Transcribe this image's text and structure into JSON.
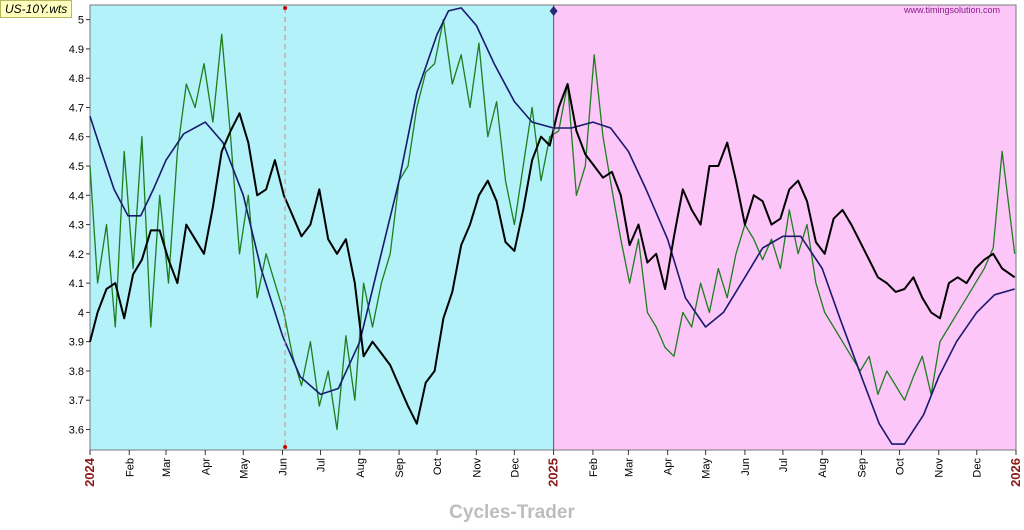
{
  "file_label": "US-10Y.wts",
  "brand": "Cycles-Trader",
  "colors": {
    "past_background": "#b2f2f8",
    "future_background": "#fcc6f8",
    "price": "#000000",
    "forecast_green": "#1e7d1e",
    "cycle_blue": "#1a1a6e",
    "year_label": "#8b1a1a",
    "cursor_line": "#e08080"
  },
  "chart_data": {
    "type": "line",
    "watermark": "www.timingsolution.com",
    "y_ticks": [
      "5",
      "4.9",
      "4.8",
      "4.7",
      "4.6",
      "4.5",
      "4.4",
      "4.3",
      "4.2",
      "4.1",
      "4",
      "3.9",
      "3.8",
      "3.7",
      "3.6"
    ],
    "ylim": [
      3.53,
      5.05
    ],
    "x_ticks": [
      {
        "label": "2024",
        "date": "2024-01-01",
        "year": true
      },
      {
        "label": "Feb",
        "date": "2024-02-01"
      },
      {
        "label": "Mar",
        "date": "2024-03-01"
      },
      {
        "label": "Apr",
        "date": "2024-04-01"
      },
      {
        "label": "May",
        "date": "2024-05-01"
      },
      {
        "label": "Jun",
        "date": "2024-06-01"
      },
      {
        "label": "Jul",
        "date": "2024-07-01"
      },
      {
        "label": "Aug",
        "date": "2024-08-01"
      },
      {
        "label": "Sep",
        "date": "2024-09-01"
      },
      {
        "label": "Oct",
        "date": "2024-10-01"
      },
      {
        "label": "Nov",
        "date": "2024-11-01"
      },
      {
        "label": "Dec",
        "date": "2024-12-01"
      },
      {
        "label": "2025",
        "date": "2025-01-01",
        "year": true
      },
      {
        "label": "Feb",
        "date": "2025-02-01"
      },
      {
        "label": "Mar",
        "date": "2025-03-01"
      },
      {
        "label": "Apr",
        "date": "2025-04-01"
      },
      {
        "label": "May",
        "date": "2025-05-01"
      },
      {
        "label": "Jun",
        "date": "2025-06-01"
      },
      {
        "label": "Jul",
        "date": "2025-07-01"
      },
      {
        "label": "Aug",
        "date": "2025-08-01"
      },
      {
        "label": "Sep",
        "date": "2025-09-01"
      },
      {
        "label": "Oct",
        "date": "2025-10-01"
      },
      {
        "label": "Nov",
        "date": "2025-11-01"
      },
      {
        "label": "Dec",
        "date": "2025-12-01"
      },
      {
        "label": "2026",
        "date": "2026-01-01",
        "year": true
      }
    ],
    "forecast_start": "2025-01-01",
    "cursor_date": "2024-06-03",
    "series": [
      {
        "id": "price",
        "x": [
          "2024-01-01",
          "2024-01-07",
          "2024-01-14",
          "2024-01-21",
          "2024-01-28",
          "2024-02-04",
          "2024-02-11",
          "2024-02-18",
          "2024-02-25",
          "2024-03-03",
          "2024-03-10",
          "2024-03-17",
          "2024-03-24",
          "2024-03-31",
          "2024-04-07",
          "2024-04-14",
          "2024-04-21",
          "2024-04-28",
          "2024-05-05",
          "2024-05-12",
          "2024-05-19",
          "2024-05-26",
          "2024-06-02",
          "2024-06-09",
          "2024-06-16",
          "2024-06-23",
          "2024-06-30",
          "2024-07-07",
          "2024-07-14",
          "2024-07-21",
          "2024-07-28",
          "2024-08-04",
          "2024-08-11",
          "2024-08-18",
          "2024-08-25",
          "2024-09-01",
          "2024-09-08",
          "2024-09-15",
          "2024-09-22",
          "2024-09-29",
          "2024-10-06",
          "2024-10-13",
          "2024-10-20",
          "2024-10-27",
          "2024-11-03",
          "2024-11-10",
          "2024-11-17",
          "2024-11-24",
          "2024-12-01",
          "2024-12-08",
          "2024-12-15",
          "2024-12-22",
          "2024-12-29",
          "2025-01-05",
          "2025-01-12",
          "2025-01-19",
          "2025-01-26",
          "2025-02-02",
          "2025-02-09",
          "2025-02-16",
          "2025-02-23",
          "2025-03-02",
          "2025-03-09",
          "2025-03-16",
          "2025-03-23",
          "2025-03-30",
          "2025-04-06",
          "2025-04-13",
          "2025-04-20",
          "2025-04-27",
          "2025-05-04",
          "2025-05-11",
          "2025-05-18",
          "2025-05-25",
          "2025-06-01",
          "2025-06-08",
          "2025-06-15",
          "2025-06-22",
          "2025-06-29",
          "2025-07-06",
          "2025-07-13",
          "2025-07-20",
          "2025-07-27",
          "2025-08-03",
          "2025-08-10",
          "2025-08-17",
          "2025-08-24",
          "2025-08-31",
          "2025-09-07",
          "2025-09-14",
          "2025-09-21",
          "2025-09-28",
          "2025-10-05",
          "2025-10-12",
          "2025-10-19",
          "2025-10-26",
          "2025-11-02",
          "2025-11-09",
          "2025-11-16",
          "2025-11-23",
          "2025-11-30",
          "2025-12-07",
          "2025-12-14",
          "2025-12-21",
          "2025-12-31"
        ],
        "y": [
          3.9,
          4.0,
          4.08,
          4.1,
          3.98,
          4.13,
          4.18,
          4.28,
          4.28,
          4.18,
          4.1,
          4.3,
          4.25,
          4.2,
          4.36,
          4.55,
          4.62,
          4.68,
          4.58,
          4.4,
          4.42,
          4.52,
          4.4,
          4.33,
          4.26,
          4.3,
          4.42,
          4.25,
          4.2,
          4.25,
          4.1,
          3.85,
          3.9,
          3.86,
          3.82,
          3.75,
          3.68,
          3.62,
          3.76,
          3.8,
          3.98,
          4.07,
          4.23,
          4.3,
          4.4,
          4.45,
          4.38,
          4.24,
          4.21,
          4.35,
          4.52,
          4.6,
          4.57,
          4.7,
          4.78,
          4.62,
          4.54,
          4.5,
          4.46,
          4.48,
          4.4,
          4.23,
          4.3,
          4.17,
          4.2,
          4.08,
          4.26,
          4.42,
          4.35,
          4.3,
          4.5,
          4.5,
          4.58,
          4.45,
          4.3,
          4.4,
          4.38,
          4.3,
          4.32,
          4.42,
          4.45,
          4.38,
          4.24,
          4.2,
          4.32,
          4.35,
          4.3,
          4.24,
          4.18,
          4.12,
          4.1,
          4.07,
          4.08,
          4.12,
          4.05,
          4.0,
          3.98,
          4.1,
          4.12,
          4.1,
          4.15,
          4.18,
          4.2,
          4.15,
          4.12
        ]
      },
      {
        "id": "forecast",
        "x": [
          "2024-01-01",
          "2024-01-07",
          "2024-01-14",
          "2024-01-21",
          "2024-01-28",
          "2024-02-04",
          "2024-02-11",
          "2024-02-18",
          "2024-02-25",
          "2024-03-03",
          "2024-03-10",
          "2024-03-17",
          "2024-03-24",
          "2024-03-31",
          "2024-04-07",
          "2024-04-14",
          "2024-04-21",
          "2024-04-28",
          "2024-05-05",
          "2024-05-12",
          "2024-05-19",
          "2024-05-26",
          "2024-06-02",
          "2024-06-09",
          "2024-06-16",
          "2024-06-23",
          "2024-06-30",
          "2024-07-07",
          "2024-07-14",
          "2024-07-21",
          "2024-07-28",
          "2024-08-04",
          "2024-08-11",
          "2024-08-18",
          "2024-08-25",
          "2024-09-01",
          "2024-09-08",
          "2024-09-15",
          "2024-09-22",
          "2024-09-29",
          "2024-10-06",
          "2024-10-13",
          "2024-10-20",
          "2024-10-27",
          "2024-11-03",
          "2024-11-10",
          "2024-11-17",
          "2024-11-24",
          "2024-12-01",
          "2024-12-08",
          "2024-12-15",
          "2024-12-22",
          "2024-12-29",
          "2025-01-05",
          "2025-01-12",
          "2025-01-19",
          "2025-01-26",
          "2025-02-02",
          "2025-02-09",
          "2025-02-16",
          "2025-02-23",
          "2025-03-02",
          "2025-03-09",
          "2025-03-16",
          "2025-03-23",
          "2025-03-30",
          "2025-04-06",
          "2025-04-13",
          "2025-04-20",
          "2025-04-27",
          "2025-05-04",
          "2025-05-11",
          "2025-05-18",
          "2025-05-25",
          "2025-06-01",
          "2025-06-08",
          "2025-06-15",
          "2025-06-22",
          "2025-06-29",
          "2025-07-06",
          "2025-07-13",
          "2025-07-20",
          "2025-07-27",
          "2025-08-03",
          "2025-08-10",
          "2025-08-17",
          "2025-08-24",
          "2025-08-31",
          "2025-09-07",
          "2025-09-14",
          "2025-09-21",
          "2025-09-28",
          "2025-10-05",
          "2025-10-12",
          "2025-10-19",
          "2025-10-26",
          "2025-11-02",
          "2025-11-09",
          "2025-11-16",
          "2025-11-23",
          "2025-11-30",
          "2025-12-07",
          "2025-12-14",
          "2025-12-21",
          "2025-12-31"
        ],
        "y": [
          4.5,
          4.1,
          4.3,
          3.95,
          4.55,
          4.15,
          4.6,
          3.95,
          4.4,
          4.1,
          4.55,
          4.78,
          4.7,
          4.85,
          4.65,
          4.95,
          4.6,
          4.2,
          4.4,
          4.05,
          4.2,
          4.1,
          4.0,
          3.85,
          3.75,
          3.9,
          3.68,
          3.8,
          3.6,
          3.92,
          3.7,
          4.1,
          3.95,
          4.1,
          4.2,
          4.45,
          4.5,
          4.7,
          4.82,
          4.85,
          5.0,
          4.78,
          4.88,
          4.7,
          4.92,
          4.6,
          4.72,
          4.45,
          4.3,
          4.5,
          4.7,
          4.45,
          4.6,
          4.62,
          4.78,
          4.4,
          4.5,
          4.88,
          4.6,
          4.42,
          4.25,
          4.1,
          4.25,
          4.0,
          3.95,
          3.88,
          3.85,
          4.0,
          3.95,
          4.1,
          4.0,
          4.15,
          4.05,
          4.2,
          4.3,
          4.25,
          4.18,
          4.25,
          4.15,
          4.35,
          4.2,
          4.3,
          4.1,
          4.0,
          3.95,
          3.9,
          3.85,
          3.8,
          3.85,
          3.72,
          3.8,
          3.75,
          3.7,
          3.78,
          3.85,
          3.72,
          3.9,
          3.95,
          4.0,
          4.05,
          4.1,
          4.15,
          4.22,
          4.55,
          4.2
        ]
      },
      {
        "id": "cycle",
        "x": [
          "2024-01-01",
          "2024-01-10",
          "2024-01-20",
          "2024-01-31",
          "2024-02-10",
          "2024-02-20",
          "2024-03-01",
          "2024-03-15",
          "2024-04-01",
          "2024-04-15",
          "2024-05-01",
          "2024-05-15",
          "2024-06-01",
          "2024-06-15",
          "2024-07-01",
          "2024-07-15",
          "2024-08-01",
          "2024-08-15",
          "2024-09-01",
          "2024-09-15",
          "2024-10-01",
          "2024-10-10",
          "2024-10-20",
          "2024-11-01",
          "2024-11-15",
          "2024-12-01",
          "2024-12-15",
          "2025-01-01",
          "2025-01-15",
          "2025-02-01",
          "2025-02-15",
          "2025-03-01",
          "2025-03-15",
          "2025-04-01",
          "2025-04-15",
          "2025-05-01",
          "2025-05-15",
          "2025-06-01",
          "2025-06-15",
          "2025-07-01",
          "2025-07-15",
          "2025-08-01",
          "2025-08-15",
          "2025-09-01",
          "2025-09-15",
          "2025-09-25",
          "2025-10-05",
          "2025-10-20",
          "2025-11-01",
          "2025-11-15",
          "2025-12-01",
          "2025-12-15",
          "2025-12-31"
        ],
        "y": [
          4.67,
          4.55,
          4.42,
          4.33,
          4.33,
          4.42,
          4.52,
          4.61,
          4.65,
          4.58,
          4.4,
          4.15,
          3.92,
          3.78,
          3.72,
          3.74,
          3.9,
          4.15,
          4.45,
          4.75,
          4.95,
          5.03,
          5.04,
          4.98,
          4.85,
          4.72,
          4.65,
          4.63,
          4.63,
          4.65,
          4.63,
          4.55,
          4.42,
          4.25,
          4.05,
          3.95,
          4.0,
          4.12,
          4.22,
          4.26,
          4.26,
          4.15,
          3.98,
          3.78,
          3.62,
          3.55,
          3.55,
          3.65,
          3.78,
          3.9,
          4.0,
          4.06,
          4.08
        ]
      }
    ]
  }
}
